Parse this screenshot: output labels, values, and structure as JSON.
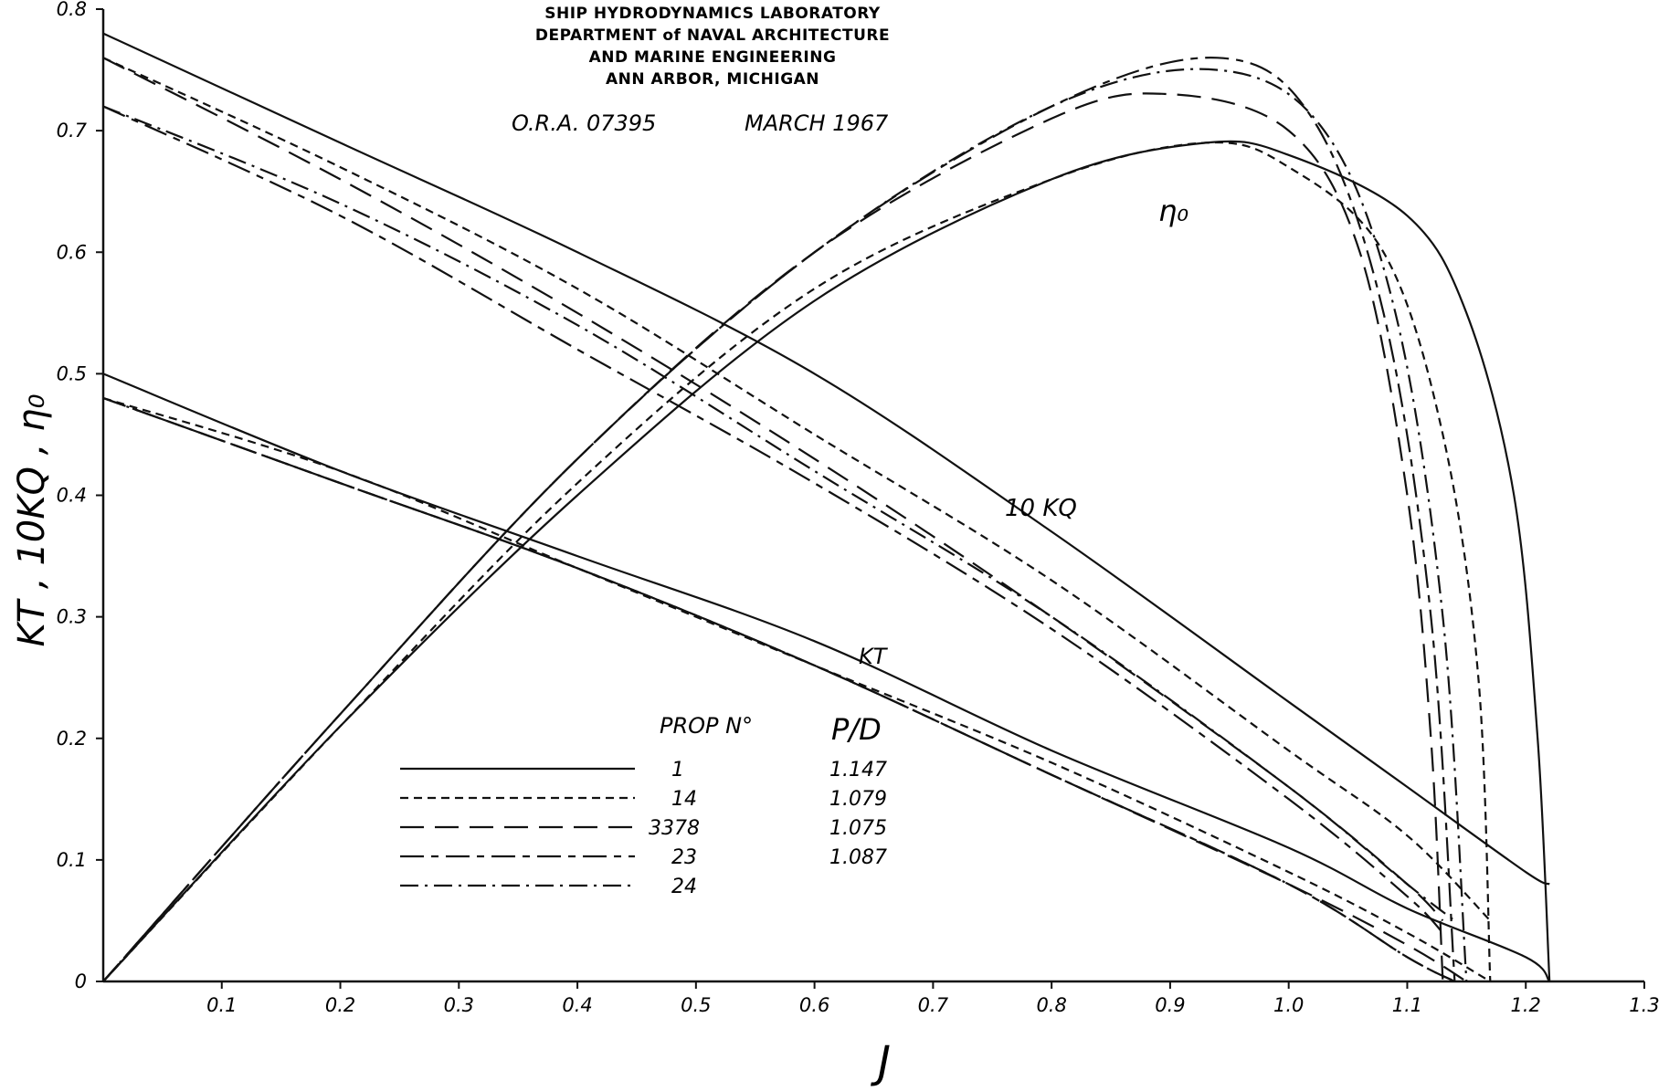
{
  "header": {
    "lines": [
      "SHIP HYDRODYNAMICS LABORATORY",
      "DEPARTMENT of NAVAL ARCHITECTURE",
      "AND MARINE ENGINEERING",
      "ANN ARBOR, MICHIGAN"
    ],
    "ora": "O.R.A. 07395",
    "date": "MARCH 1967"
  },
  "labels": {
    "eta": "η₀",
    "kq": "10 KQ",
    "kt": "KT"
  },
  "legend": {
    "col_prop": "PROP N°",
    "col_pd": "P/D",
    "rows": [
      {
        "prop": "1",
        "pd": "1.147",
        "style": "solid"
      },
      {
        "prop": "14",
        "pd": "1.079",
        "style": "short-dash"
      },
      {
        "prop": "3378",
        "pd": "1.075",
        "style": "long-dash"
      },
      {
        "prop": "23",
        "pd": "1.087",
        "style": "long-short-dash"
      },
      {
        "prop": "24",
        "pd": "",
        "style": "dash-dot"
      }
    ]
  },
  "chart_data": {
    "type": "line",
    "xlabel": "J",
    "ylabel": "KT , 10KQ , η₀",
    "xlim": [
      0,
      1.3
    ],
    "ylim": [
      0,
      0.8
    ],
    "x_ticks": [
      "0.1",
      "0.2",
      "0.3",
      "0.4",
      "0.5",
      "0.6",
      "0.7",
      "0.8",
      "0.9",
      "1.0",
      "1.1",
      "1.2",
      "1.3"
    ],
    "y_ticks": [
      "0",
      "0.1",
      "0.2",
      "0.3",
      "0.4",
      "0.5",
      "0.6",
      "0.7",
      "0.8"
    ],
    "grid": false,
    "series": [
      {
        "name": "1",
        "quantity": "10KQ",
        "style": "solid",
        "points": [
          [
            0,
            0.78
          ],
          [
            0.2,
            0.69
          ],
          [
            0.4,
            0.6
          ],
          [
            0.6,
            0.5
          ],
          [
            0.8,
            0.37
          ],
          [
            1.0,
            0.23
          ],
          [
            1.1,
            0.16
          ],
          [
            1.2,
            0.09
          ],
          [
            1.22,
            0.08
          ]
        ]
      },
      {
        "name": "14",
        "quantity": "10KQ",
        "style": "short-dash",
        "points": [
          [
            0,
            0.76
          ],
          [
            0.2,
            0.67
          ],
          [
            0.4,
            0.57
          ],
          [
            0.6,
            0.45
          ],
          [
            0.8,
            0.33
          ],
          [
            1.0,
            0.19
          ],
          [
            1.1,
            0.12
          ],
          [
            1.17,
            0.05
          ]
        ]
      },
      {
        "name": "3378",
        "quantity": "10KQ",
        "style": "long-dash",
        "points": [
          [
            0,
            0.76
          ],
          [
            0.2,
            0.66
          ],
          [
            0.4,
            0.55
          ],
          [
            0.6,
            0.43
          ],
          [
            0.8,
            0.3
          ],
          [
            1.0,
            0.16
          ],
          [
            1.1,
            0.08
          ],
          [
            1.13,
            0.05
          ]
        ]
      },
      {
        "name": "23",
        "quantity": "10KQ",
        "style": "long-short-dash",
        "points": [
          [
            0,
            0.72
          ],
          [
            0.2,
            0.63
          ],
          [
            0.4,
            0.52
          ],
          [
            0.6,
            0.41
          ],
          [
            0.8,
            0.29
          ],
          [
            1.0,
            0.15
          ],
          [
            1.1,
            0.07
          ],
          [
            1.13,
            0.04
          ]
        ]
      },
      {
        "name": "24",
        "quantity": "10KQ",
        "style": "dash-dot",
        "points": [
          [
            0,
            0.72
          ],
          [
            0.2,
            0.64
          ],
          [
            0.4,
            0.54
          ],
          [
            0.6,
            0.42
          ],
          [
            0.8,
            0.3
          ],
          [
            1.0,
            0.16
          ],
          [
            1.1,
            0.08
          ],
          [
            1.14,
            0.05
          ]
        ]
      },
      {
        "name": "1",
        "quantity": "KT",
        "style": "solid",
        "points": [
          [
            0,
            0.5
          ],
          [
            0.2,
            0.42
          ],
          [
            0.4,
            0.35
          ],
          [
            0.6,
            0.28
          ],
          [
            0.8,
            0.19
          ],
          [
            1.0,
            0.11
          ],
          [
            1.1,
            0.06
          ],
          [
            1.2,
            0.02
          ],
          [
            1.22,
            0.0
          ]
        ]
      },
      {
        "name": "14",
        "quantity": "KT",
        "style": "short-dash",
        "points": [
          [
            0,
            0.48
          ],
          [
            0.2,
            0.42
          ],
          [
            0.4,
            0.34
          ],
          [
            0.6,
            0.26
          ],
          [
            0.8,
            0.18
          ],
          [
            1.0,
            0.09
          ],
          [
            1.1,
            0.04
          ],
          [
            1.17,
            0.0
          ]
        ]
      },
      {
        "name": "3378",
        "quantity": "KT",
        "style": "long-dash",
        "points": [
          [
            0,
            0.48
          ],
          [
            0.2,
            0.41
          ],
          [
            0.4,
            0.34
          ],
          [
            0.6,
            0.26
          ],
          [
            0.8,
            0.17
          ],
          [
            1.0,
            0.08
          ],
          [
            1.1,
            0.03
          ],
          [
            1.15,
            0.0
          ]
        ]
      },
      {
        "name": "23",
        "quantity": "KT",
        "style": "long-short-dash",
        "points": [
          [
            0,
            0.48
          ],
          [
            0.2,
            0.41
          ],
          [
            0.4,
            0.34
          ],
          [
            0.6,
            0.26
          ],
          [
            0.8,
            0.17
          ],
          [
            1.0,
            0.08
          ],
          [
            1.1,
            0.02
          ],
          [
            1.14,
            0.0
          ]
        ]
      },
      {
        "name": "24",
        "quantity": "KT",
        "style": "dash-dot",
        "points": [
          [
            0,
            0.48
          ],
          [
            0.2,
            0.41
          ],
          [
            0.4,
            0.34
          ],
          [
            0.6,
            0.26
          ],
          [
            0.8,
            0.17
          ],
          [
            1.0,
            0.08
          ],
          [
            1.1,
            0.02
          ],
          [
            1.14,
            0.0
          ]
        ]
      },
      {
        "name": "1",
        "quantity": "η₀",
        "style": "solid",
        "points": [
          [
            0,
            0.0
          ],
          [
            0.2,
            0.21
          ],
          [
            0.4,
            0.4
          ],
          [
            0.6,
            0.56
          ],
          [
            0.8,
            0.66
          ],
          [
            0.93,
            0.69
          ],
          [
            1.0,
            0.68
          ],
          [
            1.1,
            0.63
          ],
          [
            1.15,
            0.55
          ],
          [
            1.19,
            0.4
          ],
          [
            1.21,
            0.2
          ],
          [
            1.22,
            0.0
          ]
        ]
      },
      {
        "name": "14",
        "quantity": "η₀",
        "style": "short-dash",
        "points": [
          [
            0,
            0.0
          ],
          [
            0.2,
            0.21
          ],
          [
            0.4,
            0.41
          ],
          [
            0.6,
            0.57
          ],
          [
            0.8,
            0.66
          ],
          [
            0.93,
            0.69
          ],
          [
            1.0,
            0.67
          ],
          [
            1.08,
            0.6
          ],
          [
            1.13,
            0.45
          ],
          [
            1.16,
            0.25
          ],
          [
            1.17,
            0.0
          ]
        ]
      },
      {
        "name": "3378",
        "quantity": "η₀",
        "style": "long-dash",
        "points": [
          [
            0,
            0.0
          ],
          [
            0.2,
            0.22
          ],
          [
            0.4,
            0.43
          ],
          [
            0.6,
            0.6
          ],
          [
            0.8,
            0.71
          ],
          [
            0.9,
            0.73
          ],
          [
            1.0,
            0.7
          ],
          [
            1.06,
            0.6
          ],
          [
            1.1,
            0.4
          ],
          [
            1.12,
            0.2
          ],
          [
            1.13,
            0.0
          ]
        ]
      },
      {
        "name": "23",
        "quantity": "η₀",
        "style": "long-short-dash",
        "points": [
          [
            0,
            0.0
          ],
          [
            0.2,
            0.22
          ],
          [
            0.4,
            0.43
          ],
          [
            0.6,
            0.6
          ],
          [
            0.8,
            0.72
          ],
          [
            0.94,
            0.76
          ],
          [
            1.02,
            0.71
          ],
          [
            1.08,
            0.55
          ],
          [
            1.12,
            0.3
          ],
          [
            1.14,
            0.0
          ]
        ]
      },
      {
        "name": "24",
        "quantity": "η₀",
        "style": "dash-dot",
        "points": [
          [
            0,
            0.0
          ],
          [
            0.2,
            0.22
          ],
          [
            0.4,
            0.43
          ],
          [
            0.6,
            0.6
          ],
          [
            0.8,
            0.72
          ],
          [
            0.94,
            0.75
          ],
          [
            1.03,
            0.7
          ],
          [
            1.09,
            0.55
          ],
          [
            1.13,
            0.3
          ],
          [
            1.15,
            0.0
          ]
        ]
      }
    ]
  }
}
